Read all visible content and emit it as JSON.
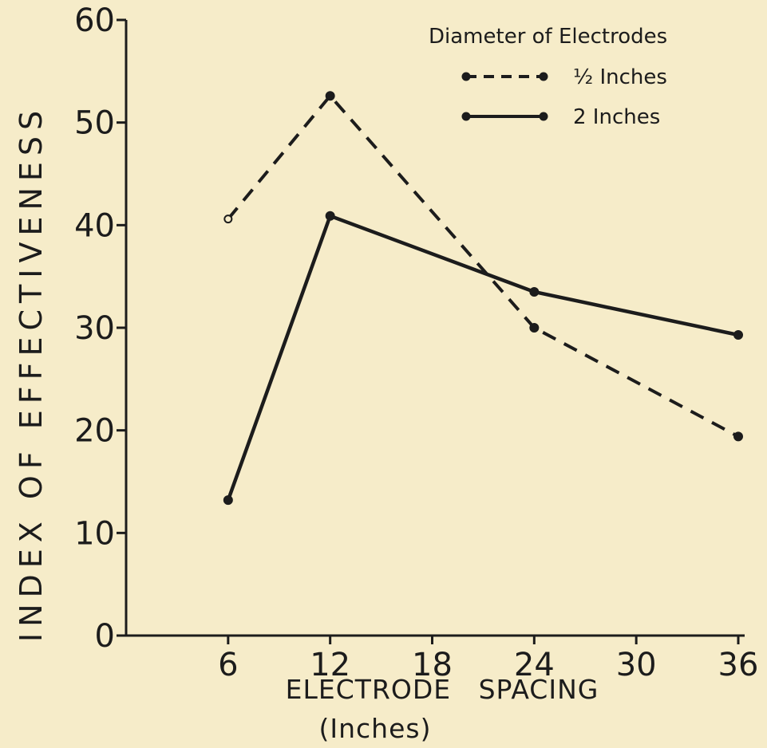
{
  "chart_data": {
    "type": "line",
    "title": "",
    "xlabel": "ELECTRODE   SPACING",
    "xlabel_unit": "(Inches)",
    "ylabel": "INDEX OF EFFECTIVENESS",
    "xlim": [
      0,
      36
    ],
    "ylim": [
      0,
      60
    ],
    "x_ticks": [
      "6",
      "12",
      "18",
      "24",
      "30",
      "36"
    ],
    "y_ticks": [
      "0",
      "10",
      "20",
      "30",
      "40",
      "50",
      "60"
    ],
    "grid": false,
    "legend": {
      "title": "Diameter of Electrodes",
      "placement": "top-right"
    },
    "series": [
      {
        "name": "½ Inches",
        "style": "dashed",
        "color": "#1c1c1c",
        "x": [
          6,
          12,
          24,
          36
        ],
        "y": [
          40.6,
          52.6,
          30.0,
          19.4
        ],
        "first_point_open": true
      },
      {
        "name": "2 Inches",
        "style": "solid",
        "color": "#1c1c1c",
        "x": [
          6,
          12,
          24,
          36
        ],
        "y": [
          13.2,
          40.9,
          33.5,
          29.3
        ],
        "first_point_open": false
      }
    ]
  }
}
